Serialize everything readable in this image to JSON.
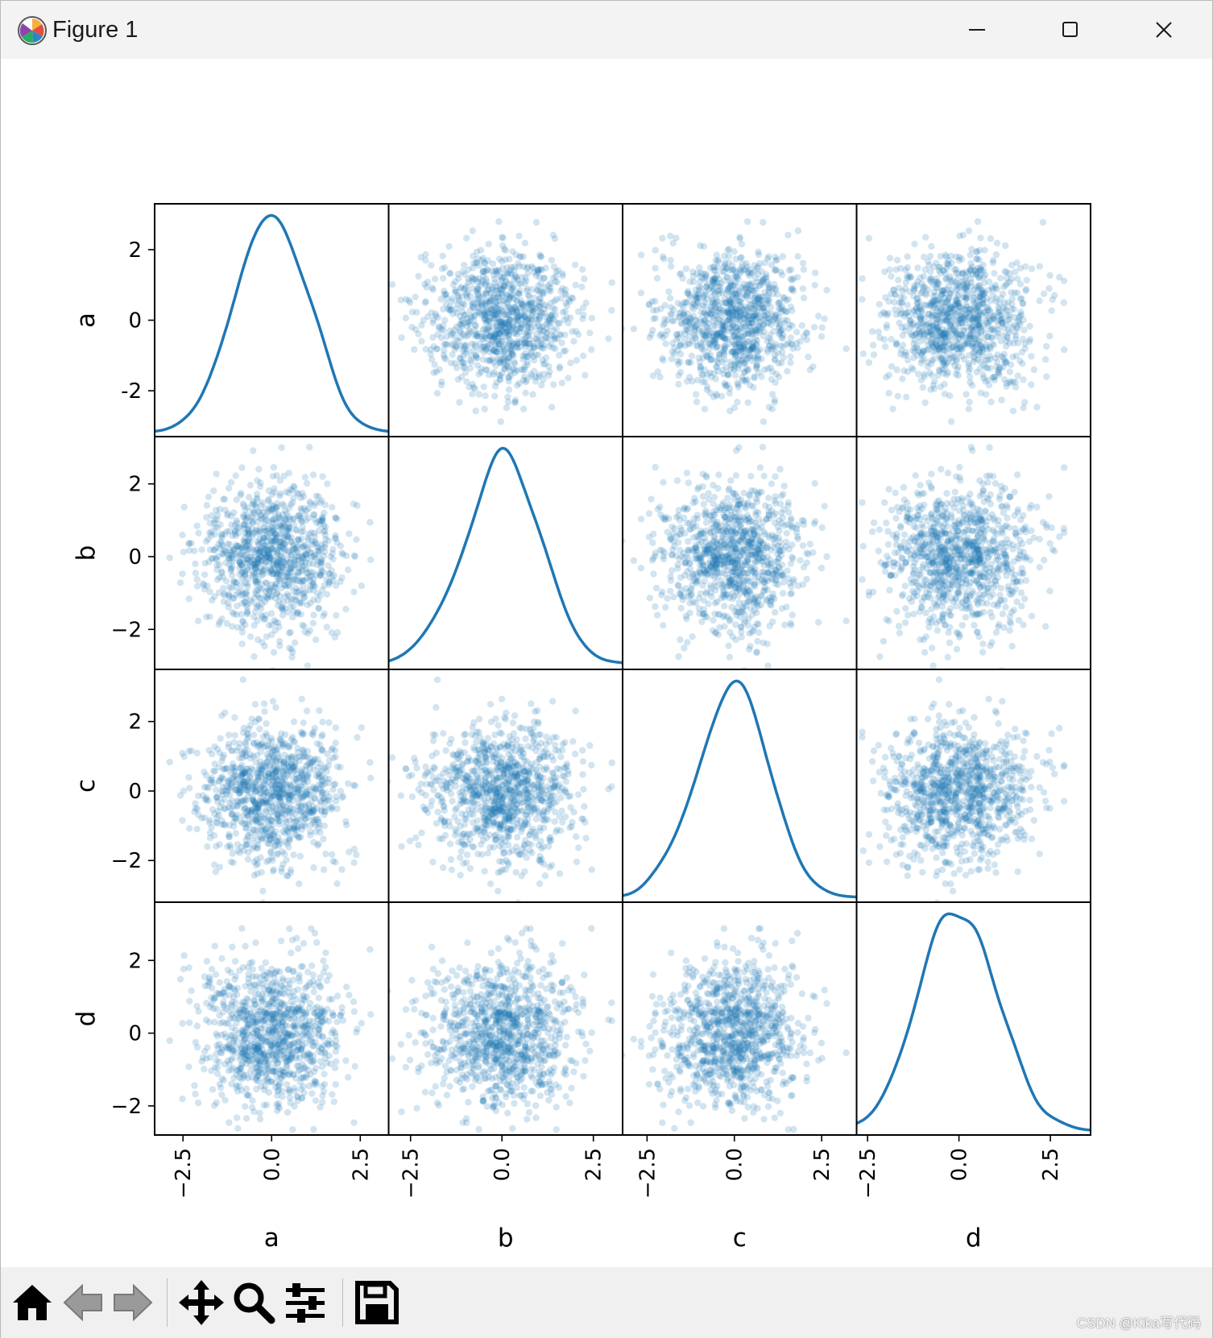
{
  "window": {
    "title": "Figure 1",
    "controls": [
      "minimize",
      "maximize",
      "close"
    ]
  },
  "toolbar": {
    "buttons": [
      {
        "name": "home",
        "icon": "home-icon"
      },
      {
        "name": "back",
        "icon": "back-arrow-icon"
      },
      {
        "name": "forward",
        "icon": "forward-arrow-icon"
      },
      {
        "name": "pan",
        "icon": "move-icon"
      },
      {
        "name": "zoom",
        "icon": "zoom-icon"
      },
      {
        "name": "configure-subplots",
        "icon": "sliders-icon"
      },
      {
        "name": "save",
        "icon": "save-icon"
      }
    ]
  },
  "watermark": "CSDN @Kika写代码",
  "chart_data": {
    "type": "scatter",
    "kind": "scatter_matrix",
    "variables": [
      "a",
      "b",
      "c",
      "d"
    ],
    "diagonal": "kde",
    "color": "#1f77b4",
    "alpha": 0.2,
    "n_points": 1000,
    "x_tick_labels": [
      "−2.5",
      "0.0",
      "2.5"
    ],
    "y_tick_labels": {
      "a": [
        "2",
        "0",
        "-2"
      ],
      "b": [
        "2",
        "0",
        "−2"
      ],
      "c": [
        "2",
        "0",
        "−2"
      ],
      "d": [
        "2",
        "0",
        "−2"
      ]
    },
    "y_ticks": [
      2,
      0,
      -2
    ],
    "x_ticks": [
      -2.5,
      0.0,
      2.5
    ],
    "ranges": {
      "a": [
        -3.3,
        3.3
      ],
      "b": [
        -3.1,
        3.3
      ],
      "c": [
        -3.2,
        3.5
      ],
      "d": [
        -2.8,
        3.6
      ]
    },
    "kde_peaks": {
      "a": 0.0,
      "b": 0.0,
      "c": 0.0,
      "d": 0.1
    },
    "grid": false
  }
}
